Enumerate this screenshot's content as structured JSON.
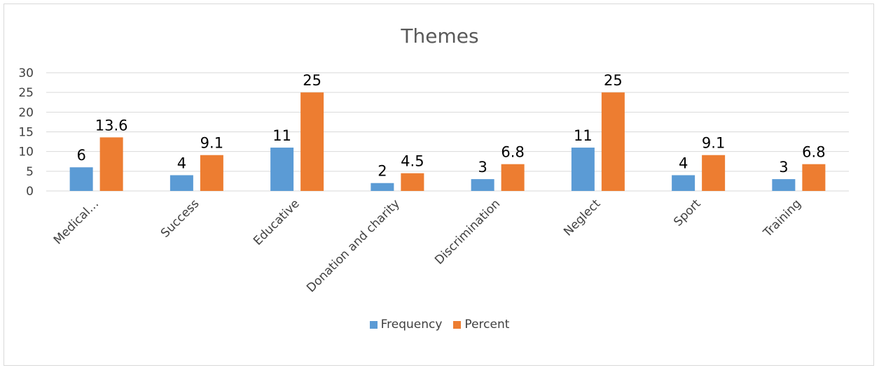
{
  "chart_data": {
    "type": "bar",
    "title": "Themes",
    "categories": [
      "Medical…",
      "Success",
      "Educative",
      "Donation and charity",
      "Discrimination",
      "Neglect",
      "Sport",
      "Training"
    ],
    "series": [
      {
        "name": "Frequency",
        "color": "#5b9bd5",
        "values": [
          6,
          4,
          11,
          2,
          3,
          11,
          4,
          3
        ],
        "labels": [
          "6",
          "4",
          "11",
          "2",
          "3",
          "11",
          "4",
          "3"
        ]
      },
      {
        "name": "Percent",
        "color": "#ed7d31",
        "values": [
          13.6,
          9.1,
          25,
          4.5,
          6.8,
          25,
          9.1,
          6.8
        ],
        "labels": [
          "13.6",
          "9.1",
          "25",
          "4.5",
          "6.8",
          "25",
          "9.1",
          "6.8"
        ]
      }
    ],
    "ylim": [
      0,
      30
    ],
    "yticks": [
      0,
      5,
      10,
      15,
      20,
      25,
      30
    ],
    "xlabel": "",
    "ylabel": "",
    "grid": true,
    "legend_position": "bottom"
  }
}
